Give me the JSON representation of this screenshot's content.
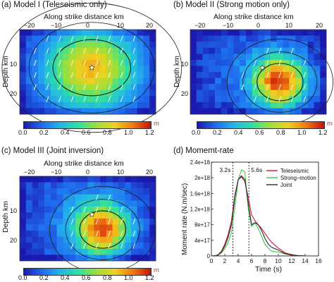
{
  "panels": [
    {
      "title": "(a) Model I (Teleseismic only)",
      "xlabel": "Along strike distance km",
      "ylabel": "Depth km",
      "xticks": [
        "−20",
        "−10",
        "0",
        "10",
        "20"
      ],
      "yticks": [
        "10",
        "20"
      ]
    },
    {
      "title": "(b) Model II (Strong motion only)",
      "xlabel": "Along strike distance km",
      "ylabel": "Depth km",
      "xticks": [
        "−20",
        "−10",
        "0",
        "10",
        "20"
      ],
      "yticks": [
        "10",
        "20"
      ]
    },
    {
      "title": "(c) Model III (Joint inversion)",
      "xlabel": "Along strike distance km",
      "ylabel": "Depth km",
      "xticks": [
        "−20",
        "−10",
        "0",
        "10",
        "20"
      ],
      "yticks": [
        "10",
        "20"
      ]
    }
  ],
  "colorbar": {
    "ticks": [
      "0.0",
      "0.2",
      "0.4",
      "0.6",
      "0.8",
      "1.0",
      "1.2"
    ],
    "unit": "m",
    "colors": [
      "#1a1ab0",
      "#1f6cf0",
      "#23b4ec",
      "#2ee0a0",
      "#9be03a",
      "#f0d020",
      "#f07a10",
      "#c81010"
    ]
  },
  "moment_rate": {
    "title": "(d) Momemt-rate",
    "annotations": [
      "3.2s",
      "5.6s"
    ]
  },
  "chart_data": {
    "type": "line",
    "title": "(d) Momemt-rate",
    "xlabel": "Time (s)",
    "ylabel": "Moment rate (N.m/sec)",
    "xlim": [
      0,
      16
    ],
    "ylim": [
      0,
      2.4e+18
    ],
    "xticks": [
      "0",
      "2",
      "4",
      "6",
      "8",
      "10",
      "12",
      "14",
      "16"
    ],
    "yticks": [
      "0",
      "4e+17",
      "8e+17",
      "1.2e+18",
      "1.6e+18",
      "2e+18",
      "2.4e+18"
    ],
    "vlines": [
      3.2,
      5.6
    ],
    "legend_position": "top-right",
    "series": [
      {
        "name": "Teleseismic",
        "color": "#d0142c",
        "x": [
          0,
          0.5,
          1,
          1.5,
          2,
          2.5,
          3,
          3.5,
          4,
          4.5,
          5,
          5.5,
          6,
          6.5,
          7,
          7.5,
          8,
          8.5,
          9,
          10,
          11,
          12,
          13,
          14
        ],
        "y": [
          0,
          3000000000000000.0,
          3e+16,
          1.2e+17,
          3e+17,
          5.5e+17,
          9e+17,
          1.55e+18,
          1.95e+18,
          2.02e+18,
          1.9e+18,
          1.5e+18,
          1.05e+18,
          9e+17,
          8e+17,
          7e+17,
          5.8e+17,
          4.5e+17,
          3.5e+17,
          2e+17,
          8e+16,
          3e+16,
          1e+16,
          0
        ]
      },
      {
        "name": "Strong–motion",
        "color": "#3cc83c",
        "x": [
          0,
          0.5,
          1,
          1.5,
          2,
          2.5,
          3,
          3.5,
          4,
          4.5,
          5,
          5.5,
          6,
          6.5,
          7,
          7.5,
          8,
          8.5,
          9,
          10,
          11,
          12,
          13,
          14
        ],
        "y": [
          0,
          5000000000000000.0,
          2e+16,
          8e+16,
          1.8e+17,
          3.5e+17,
          6e+17,
          1.25e+18,
          1.95e+18,
          2.2e+18,
          2.15e+18,
          1.2e+18,
          7.5e+17,
          8.5e+17,
          7e+17,
          5e+17,
          3e+17,
          2e+17,
          1.2e+17,
          1e+17,
          5e+16,
          2e+16,
          5000000000000000.0,
          0
        ]
      },
      {
        "name": "Joint",
        "color": "#28283c",
        "x": [
          0,
          0.5,
          1,
          1.5,
          2,
          2.5,
          3,
          3.5,
          4,
          4.5,
          5,
          5.5,
          6,
          6.5,
          7,
          7.5,
          8,
          8.5,
          9,
          10,
          11,
          12,
          13,
          14
        ],
        "y": [
          0,
          3000000000000000.0,
          2e+16,
          1e+17,
          2.5e+17,
          4.8e+17,
          8e+17,
          1.5e+18,
          1.95e+18,
          2.05e+18,
          1.95e+18,
          1.35e+18,
          8e+17,
          8.5e+17,
          8e+17,
          6.5e+17,
          4.5e+17,
          3e+17,
          2.2e+17,
          1.5e+17,
          6e+16,
          2e+16,
          5000000000000000.0,
          0
        ]
      }
    ]
  }
}
